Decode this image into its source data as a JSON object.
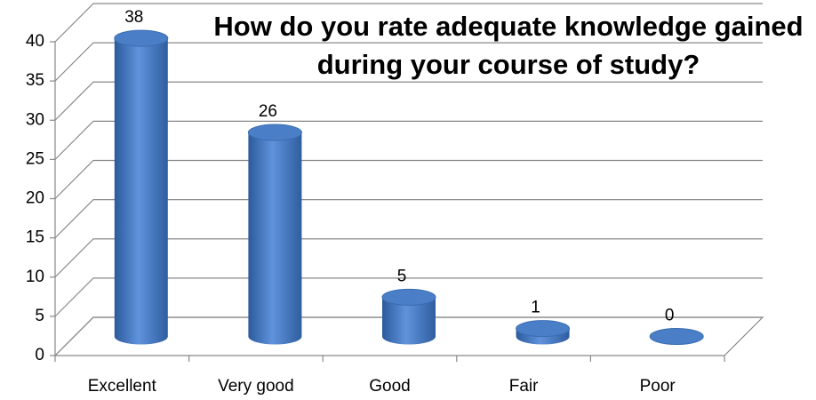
{
  "chart_data": {
    "type": "bar3d",
    "title": "How do you rate adequate knowledge gained during your course of study?",
    "categories": [
      "Excellent",
      "Very good",
      "Good",
      "Fair",
      "Poor"
    ],
    "values": [
      38,
      26,
      5,
      1,
      0
    ],
    "color": "#4a7fc8",
    "ylim": [
      0,
      40
    ],
    "yticks": [
      0,
      5,
      10,
      15,
      20,
      25,
      30,
      35,
      40
    ],
    "grid": true
  }
}
